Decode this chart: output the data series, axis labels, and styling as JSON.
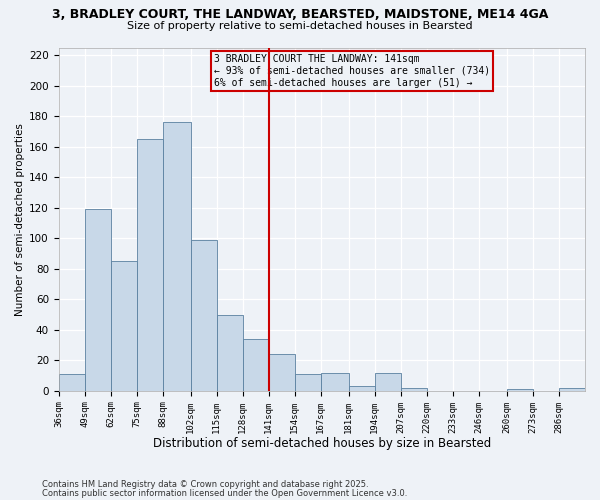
{
  "title_line1": "3, BRADLEY COURT, THE LANDWAY, BEARSTED, MAIDSTONE, ME14 4GA",
  "title_line2": "Size of property relative to semi-detached houses in Bearsted",
  "xlabel": "Distribution of semi-detached houses by size in Bearsted",
  "ylabel": "Number of semi-detached properties",
  "bin_edges": [
    36,
    49,
    62,
    75,
    88,
    102,
    115,
    128,
    141,
    154,
    167,
    181,
    194,
    207,
    220,
    233,
    246,
    260,
    273,
    286,
    299
  ],
  "bar_heights": [
    11,
    119,
    85,
    165,
    176,
    99,
    50,
    34,
    24,
    11,
    12,
    3,
    12,
    2,
    0,
    0,
    0,
    1,
    0,
    2
  ],
  "bar_color": "#c8d8e8",
  "bar_edge_color": "#5a80a0",
  "vline_x": 141,
  "vline_color": "#cc0000",
  "annotation_line1": "3 BRADLEY COURT THE LANDWAY: 141sqm",
  "annotation_line2": "← 93% of semi-detached houses are smaller (734)",
  "annotation_line3": "6% of semi-detached houses are larger (51) →",
  "annotation_box_edge": "#cc0000",
  "ylim": [
    0,
    225
  ],
  "yticks": [
    0,
    20,
    40,
    60,
    80,
    100,
    120,
    140,
    160,
    180,
    200,
    220
  ],
  "background_color": "#eef2f7",
  "grid_color": "#ffffff",
  "footnote1": "Contains HM Land Registry data © Crown copyright and database right 2025.",
  "footnote2": "Contains public sector information licensed under the Open Government Licence v3.0."
}
